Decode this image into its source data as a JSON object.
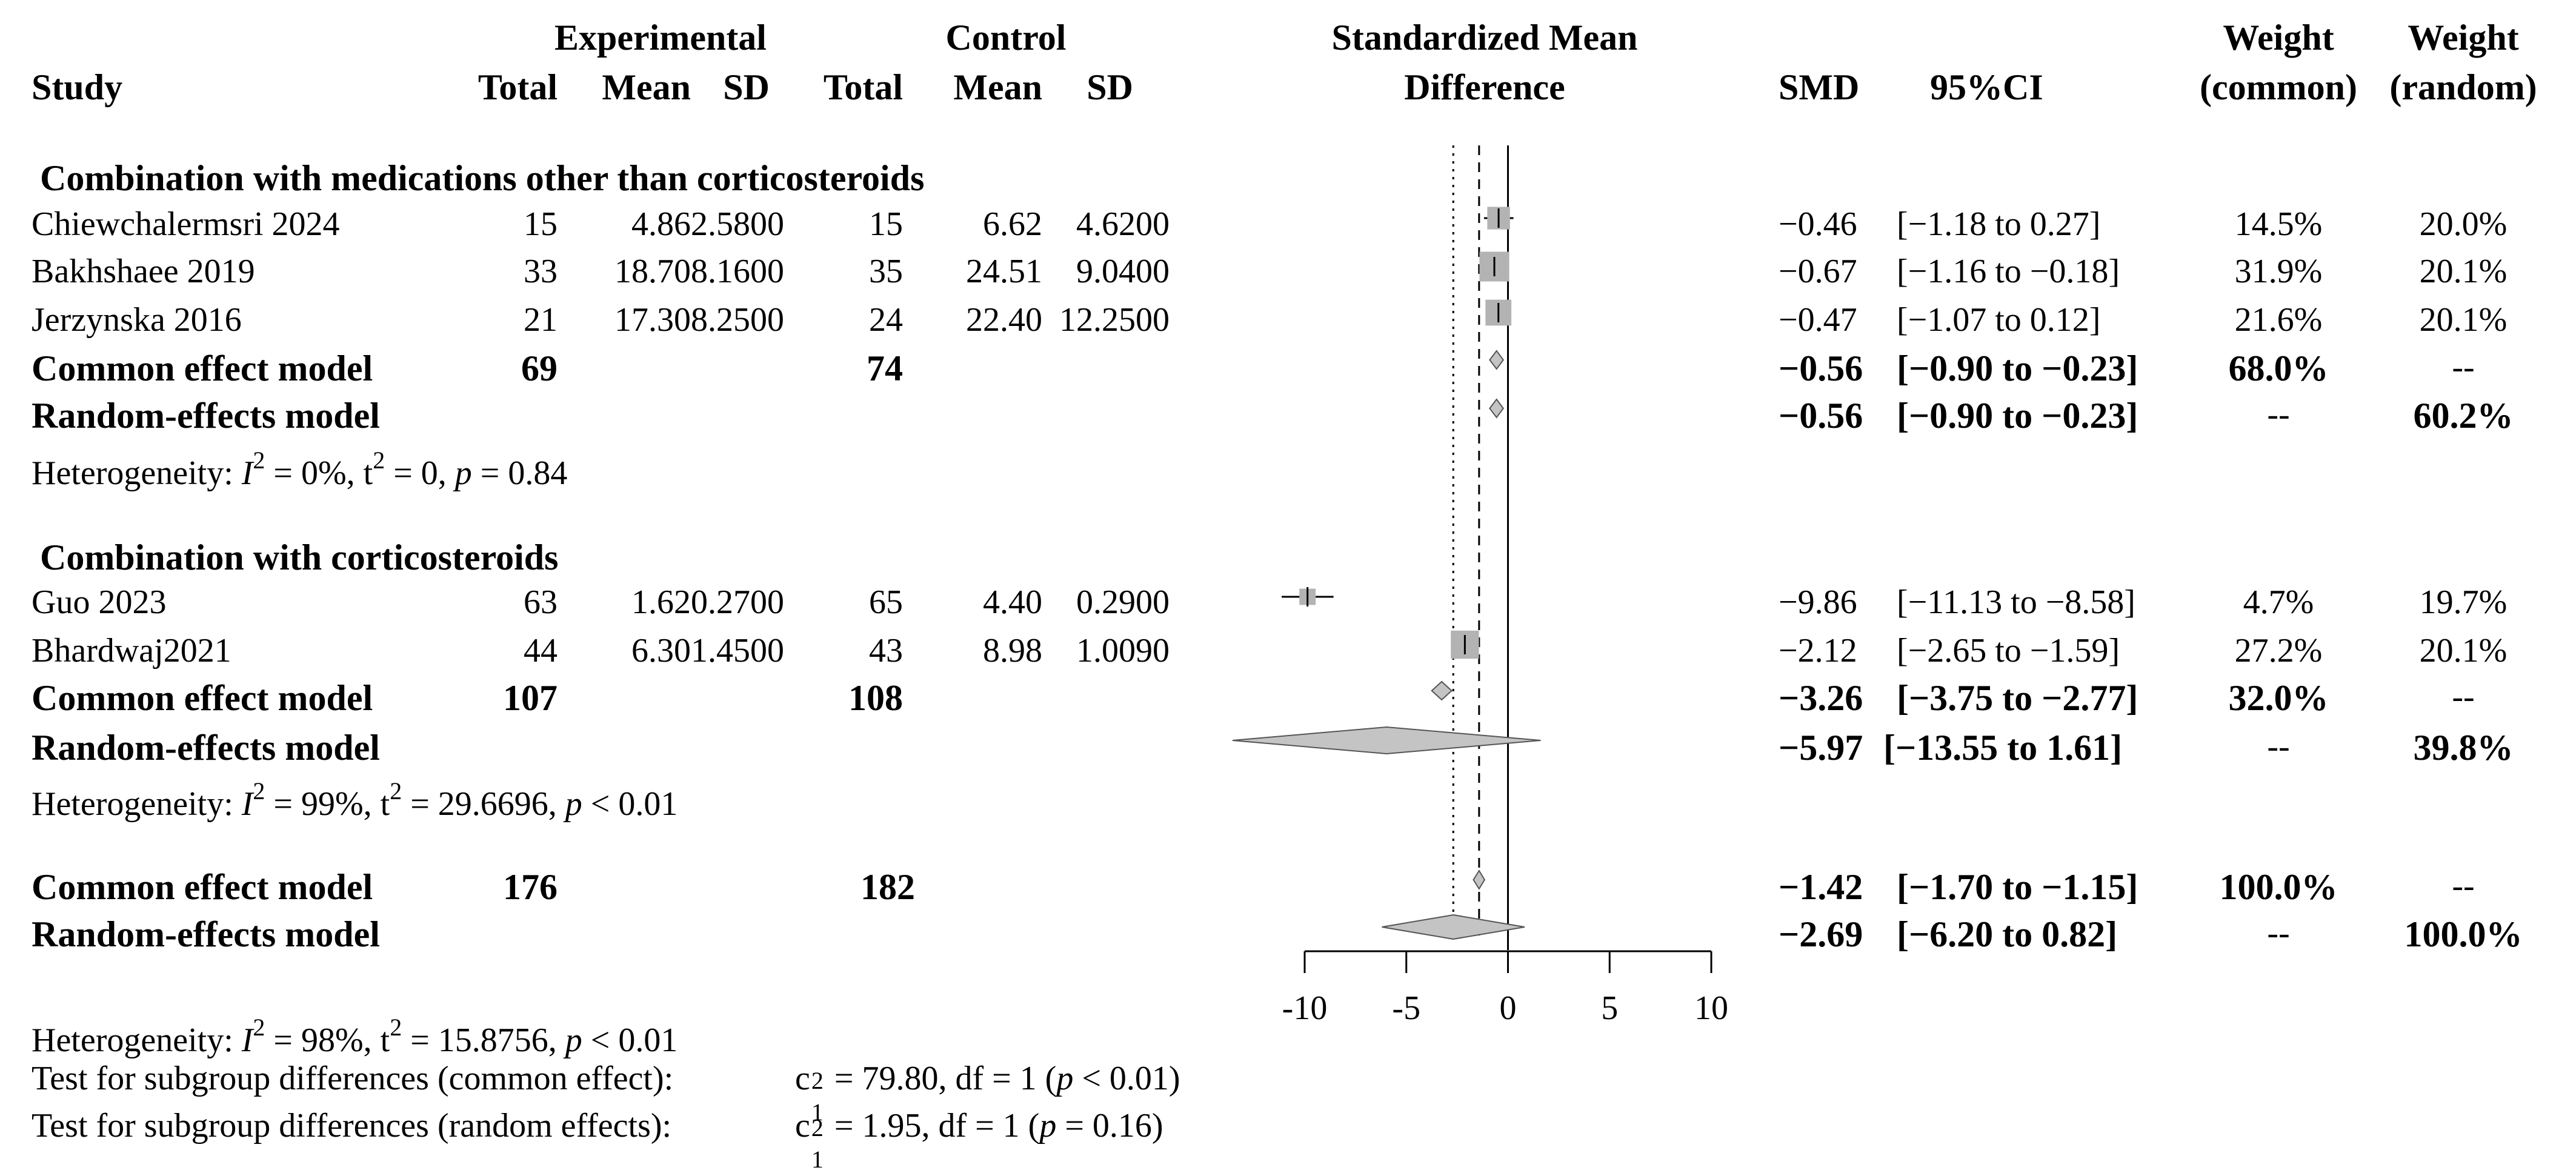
{
  "headers": {
    "study": "Study",
    "experimental": "Experimental",
    "control": "Control",
    "total": "Total",
    "mean": "Mean",
    "sd": "SD",
    "smd_title_line1": "Standardized Mean",
    "smd_title_line2": "Difference",
    "smd": "SMD",
    "ci": "95%CI",
    "weight": "Weight",
    "weight_common": "(common)",
    "weight_random": "(random)"
  },
  "subgroup1": {
    "title": "Combination with medications other than corticosteroids",
    "rows": [
      {
        "study": "Chiewchalermsri 2024",
        "e_total": "15",
        "e_mean": "4.86",
        "e_sd": "2.5800",
        "c_total": "15",
        "c_mean": "6.62",
        "c_sd": "4.6200",
        "smd": "−0.46",
        "ci": "[−1.18 to 0.27]",
        "w_common": "14.5%",
        "w_random": "20.0%"
      },
      {
        "study": "Bakhshaee 2019",
        "e_total": "33",
        "e_mean": "18.70",
        "e_sd": "8.1600",
        "c_total": "35",
        "c_mean": "24.51",
        "c_sd": "9.0400",
        "smd": "−0.67",
        "ci": "[−1.16 to −0.18]",
        "w_common": "31.9%",
        "w_random": "20.1%"
      },
      {
        "study": "Jerzynska 2016",
        "e_total": "21",
        "e_mean": "17.30",
        "e_sd": "8.2500",
        "c_total": "24",
        "c_mean": "22.40",
        "c_sd": "12.2500",
        "smd": "−0.47",
        "ci": "[−1.07 to 0.12]",
        "w_common": "21.6%",
        "w_random": "20.1%"
      }
    ],
    "common": {
      "label": "Common effect model",
      "e_total": "69",
      "c_total": "74",
      "smd": "−0.56",
      "ci": "[−0.90 to −0.23]",
      "w_common": "68.0%",
      "w_random": "--"
    },
    "random": {
      "label": "Random-effects model",
      "smd": "−0.56",
      "ci": "[−0.90 to −0.23]",
      "w_common": "--",
      "w_random": "60.2%"
    },
    "het_prefix": "Heterogeneity: ",
    "het_i2": "I",
    "het_i2_val": " = 0%, t",
    "het_t2_val": " = 0, ",
    "het_p": "p",
    "het_p_val": " = 0.84"
  },
  "subgroup2": {
    "title": "Combination with corticosteroids",
    "rows": [
      {
        "study": "Guo 2023",
        "e_total": "63",
        "e_mean": "1.62",
        "e_sd": "0.2700",
        "c_total": "65",
        "c_mean": "4.40",
        "c_sd": "0.2900",
        "smd": "−9.86",
        "ci": "[−11.13 to −8.58]",
        "w_common": "4.7%",
        "w_random": "19.7%"
      },
      {
        "study": "Bhardwaj2021",
        "e_total": "44",
        "e_mean": "6.30",
        "e_sd": "1.4500",
        "c_total": "43",
        "c_mean": "8.98",
        "c_sd": "1.0090",
        "smd": "−2.12",
        "ci": "[−2.65 to −1.59]",
        "w_common": "27.2%",
        "w_random": "20.1%"
      }
    ],
    "common": {
      "label": "Common effect model",
      "e_total": "107",
      "c_total": "108",
      "smd": "−3.26",
      "ci": "[−3.75 to −2.77]",
      "w_common": "32.0%",
      "w_random": "--"
    },
    "random": {
      "label": "Random-effects model",
      "smd": "−5.97",
      "ci": "[−13.55 to 1.61]",
      "w_common": "--",
      "w_random": "39.8%"
    },
    "het_prefix": "Heterogeneity: ",
    "het_i2": "I",
    "het_i2_val": " = 99%, t",
    "het_t2_val": " = 29.6696, ",
    "het_p": "p",
    "het_p_val": " < 0.01"
  },
  "overall": {
    "common": {
      "label": "Common effect model",
      "e_total": "176",
      "c_total": "182",
      "smd": "−1.42",
      "ci": "[−1.70 to −1.15]",
      "w_common": "100.0%",
      "w_random": "--"
    },
    "random": {
      "label": "Random-effects model",
      "smd": "−2.69",
      "ci": "[−6.20 to 0.82]",
      "w_common": "--",
      "w_random": "100.0%"
    },
    "het_prefix": "Heterogeneity: ",
    "het_i2": "I",
    "het_i2_val": " = 98%, t",
    "het_t2_val": " = 15.8756, ",
    "het_p": "p",
    "het_p_val": " < 0.01",
    "test_common_label": "Test for subgroup differences (common effect):",
    "test_common_c": "c",
    "test_common_val": " = 79.80, df = 1  (",
    "test_common_p": "p",
    "test_common_pval": " < 0.01)",
    "test_random_label": "Test for subgroup differences (random effects):",
    "test_random_c": "c",
    "test_random_val": " = 1.95, df = 1  (",
    "test_random_p": "p",
    "test_random_pval": " = 0.16)",
    "sup2": "2",
    "sub1": "1"
  },
  "chart_data": {
    "type": "forest",
    "title": "Standardized Mean Difference",
    "xlim": [
      -10,
      10
    ],
    "ticks": [
      -10,
      -5,
      0,
      5,
      10
    ],
    "tick_labels": [
      "-10",
      "-5",
      "0",
      "5",
      "10"
    ],
    "common_overall_line": -1.42,
    "random_overall_line": -2.69,
    "studies": [
      {
        "name": "Chiewchalermsri 2024",
        "smd": -0.46,
        "lo": -1.18,
        "hi": 0.27,
        "weight": 14.5
      },
      {
        "name": "Bakhshaee 2019",
        "smd": -0.67,
        "lo": -1.16,
        "hi": -0.18,
        "weight": 31.9
      },
      {
        "name": "Jerzynska 2016",
        "smd": -0.47,
        "lo": -1.07,
        "hi": 0.12,
        "weight": 21.6
      },
      {
        "name": "Guo 2023",
        "smd": -9.86,
        "lo": -11.13,
        "hi": -8.58,
        "weight": 4.7
      },
      {
        "name": "Bhardwaj2021",
        "smd": -2.12,
        "lo": -2.65,
        "hi": -1.59,
        "weight": 27.2
      }
    ],
    "diamonds": [
      {
        "name": "Subgroup 1 common",
        "smd": -0.56,
        "lo": -0.9,
        "hi": -0.23
      },
      {
        "name": "Subgroup 1 random",
        "smd": -0.56,
        "lo": -0.9,
        "hi": -0.23
      },
      {
        "name": "Subgroup 2 common",
        "smd": -3.26,
        "lo": -3.75,
        "hi": -2.77
      },
      {
        "name": "Subgroup 2 random",
        "smd": -5.97,
        "lo": -13.55,
        "hi": 1.61
      },
      {
        "name": "Overall common",
        "smd": -1.42,
        "lo": -1.7,
        "hi": -1.15
      },
      {
        "name": "Overall random",
        "smd": -2.69,
        "lo": -6.2,
        "hi": 0.82
      }
    ]
  }
}
